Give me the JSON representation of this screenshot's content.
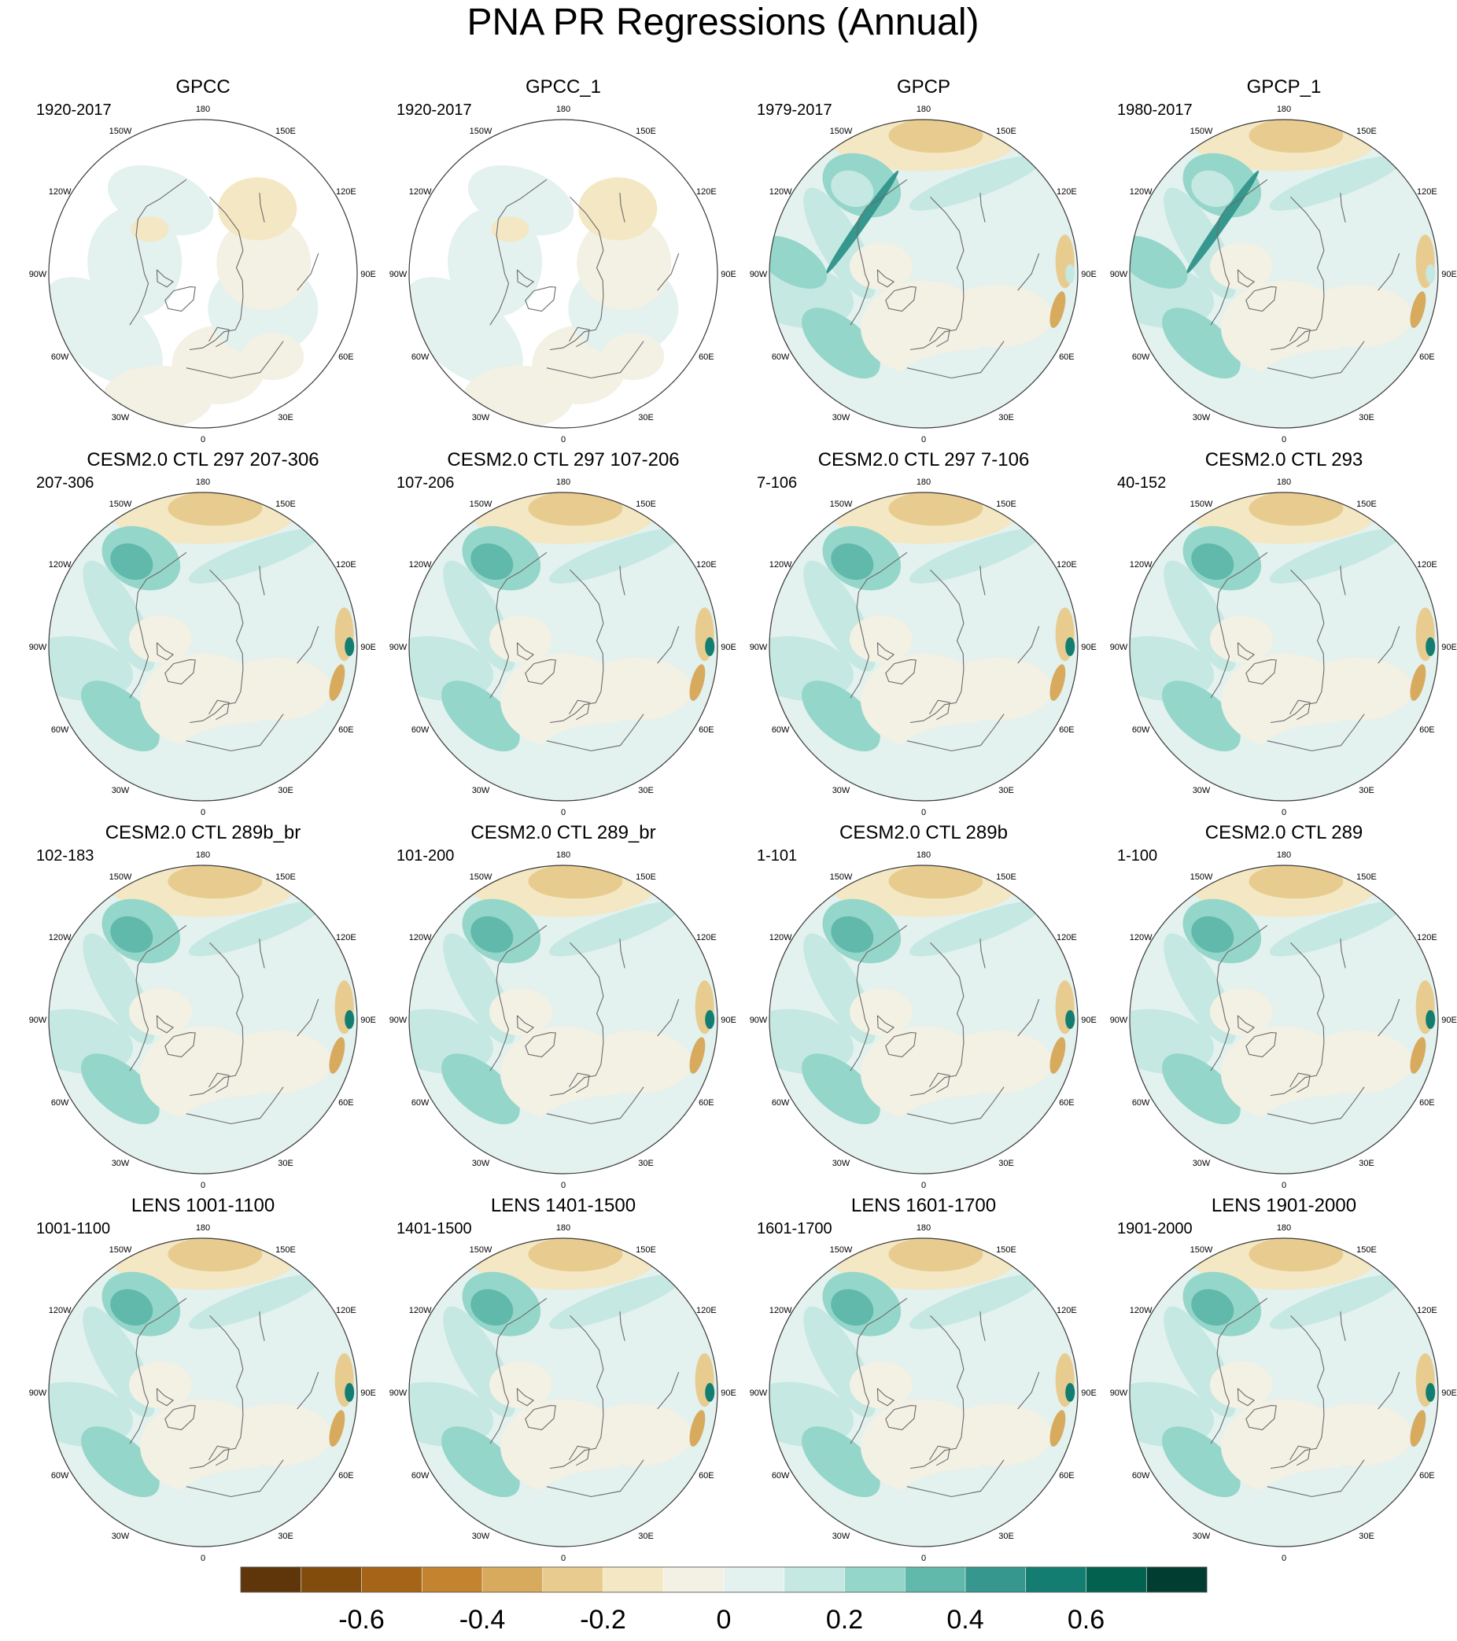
{
  "title": "PNA PR Regressions (Annual)",
  "panels": [
    {
      "title": "GPCC",
      "period": "1920-2017",
      "variant": "obs_gpcc"
    },
    {
      "title": "GPCC_1",
      "period": "1920-2017",
      "variant": "obs_gpcc"
    },
    {
      "title": "GPCP",
      "period": "1979-2017",
      "variant": "obs_gpcp"
    },
    {
      "title": "GPCP_1",
      "period": "1980-2017",
      "variant": "obs_gpcp"
    },
    {
      "title": "CESM2.0 CTL 297 207-306",
      "period": "207-306",
      "variant": "model"
    },
    {
      "title": "CESM2.0 CTL 297 107-206",
      "period": "107-206",
      "variant": "model"
    },
    {
      "title": "CESM2.0 CTL 297 7-106",
      "period": "7-106",
      "variant": "model"
    },
    {
      "title": "CESM2.0 CTL 293",
      "period": "40-152",
      "variant": "model"
    },
    {
      "title": "CESM2.0 CTL 289b_br",
      "period": "102-183",
      "variant": "model"
    },
    {
      "title": "CESM2.0 CTL 289_br",
      "period": "101-200",
      "variant": "model"
    },
    {
      "title": "CESM2.0 CTL 289b",
      "period": "1-101",
      "variant": "model"
    },
    {
      "title": "CESM2.0 CTL 289",
      "period": "1-100",
      "variant": "model"
    },
    {
      "title": "LENS 1001-1100",
      "period": "1001-1100",
      "variant": "model"
    },
    {
      "title": "LENS 1401-1500",
      "period": "1401-1500",
      "variant": "model"
    },
    {
      "title": "LENS 1601-1700",
      "period": "1601-1700",
      "variant": "model"
    },
    {
      "title": "LENS 1901-2000",
      "period": "1901-2000",
      "variant": "model"
    }
  ],
  "longitude_labels": [
    "180",
    "150E",
    "120E",
    "90E",
    "60E",
    "30E",
    "0",
    "30W",
    "60W",
    "90W",
    "120W",
    "150W"
  ],
  "colorbar": {
    "colors": [
      "#5e3609",
      "#824c0d",
      "#a66418",
      "#c3832f",
      "#d7aa5e",
      "#e8cc8f",
      "#f4e7c3",
      "#f3f0e4",
      "#e3f1ef",
      "#c5e8e2",
      "#95d6ca",
      "#61b9ab",
      "#35978d",
      "#137d72",
      "#02614f",
      "#023d31"
    ],
    "tick_labels": [
      "-0.6",
      "-0.4",
      "-0.2",
      "0",
      "0.2",
      "0.4",
      "0.6"
    ],
    "tick_positions": [
      2,
      4,
      6,
      8,
      10,
      12,
      14
    ]
  }
}
